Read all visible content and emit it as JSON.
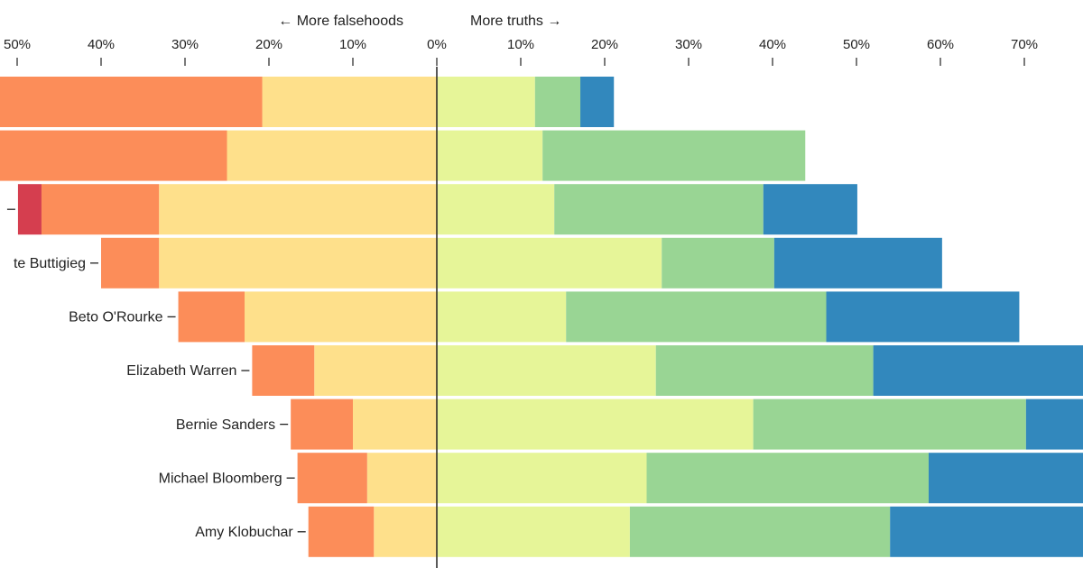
{
  "chart_data": {
    "type": "bar",
    "orientation": "horizontal-diverging",
    "direction_labels": {
      "left": "← More falsehoods",
      "right": "More truths →"
    },
    "x_tick_labels": [
      "50%",
      "40%",
      "30%",
      "20%",
      "10%",
      "0%",
      "10%",
      "20%",
      "30%",
      "40%",
      "50%",
      "60%",
      "70%"
    ],
    "x_tick_values": [
      -50,
      -40,
      -30,
      -20,
      -10,
      0,
      10,
      20,
      30,
      40,
      50,
      60,
      70
    ],
    "xlim": [
      -52,
      77
    ],
    "categories": [
      "",
      "",
      "",
      "te Buttigieg",
      "Beto O'Rourke",
      "Elizabeth Warren",
      "Bernie Sanders",
      "Michael Bloomberg",
      "Amy Klobuchar"
    ],
    "colors": {
      "pants_on_fire": "#d53e4f",
      "false": "#fc8d59",
      "mostly_false": "#fee08b",
      "half_true": "#e6f598",
      "mostly_true": "#99d594",
      "true": "#3288bd"
    },
    "series_order": [
      "pants_on_fire",
      "false",
      "mostly_false",
      "half_true",
      "mostly_true",
      "true"
    ],
    "series_sign": [
      -1,
      -1,
      -1,
      1,
      1,
      1
    ],
    "series": [
      {
        "key": "pants_on_fire",
        "values": [
          0,
          0,
          2.8,
          0,
          0,
          0,
          0,
          0,
          0
        ]
      },
      {
        "key": "false",
        "values": [
          34.0,
          37.9,
          14.0,
          6.9,
          7.9,
          7.4,
          7.4,
          8.3,
          7.8
        ]
      },
      {
        "key": "mostly_false",
        "values": [
          20.8,
          25.0,
          33.1,
          33.1,
          22.9,
          14.6,
          10.0,
          8.3,
          7.5
        ]
      },
      {
        "key": "half_true",
        "values": [
          11.7,
          12.6,
          14.0,
          26.8,
          15.4,
          26.1,
          37.7,
          25.0,
          23.0
        ]
      },
      {
        "key": "mostly_true",
        "values": [
          5.4,
          31.3,
          24.9,
          13.4,
          31.0,
          25.9,
          32.5,
          33.6,
          31.0
        ]
      },
      {
        "key": "true",
        "values": [
          4.0,
          0,
          11.2,
          20.0,
          23.0,
          27.0,
          15.0,
          22.0,
          24.0
        ]
      }
    ]
  }
}
